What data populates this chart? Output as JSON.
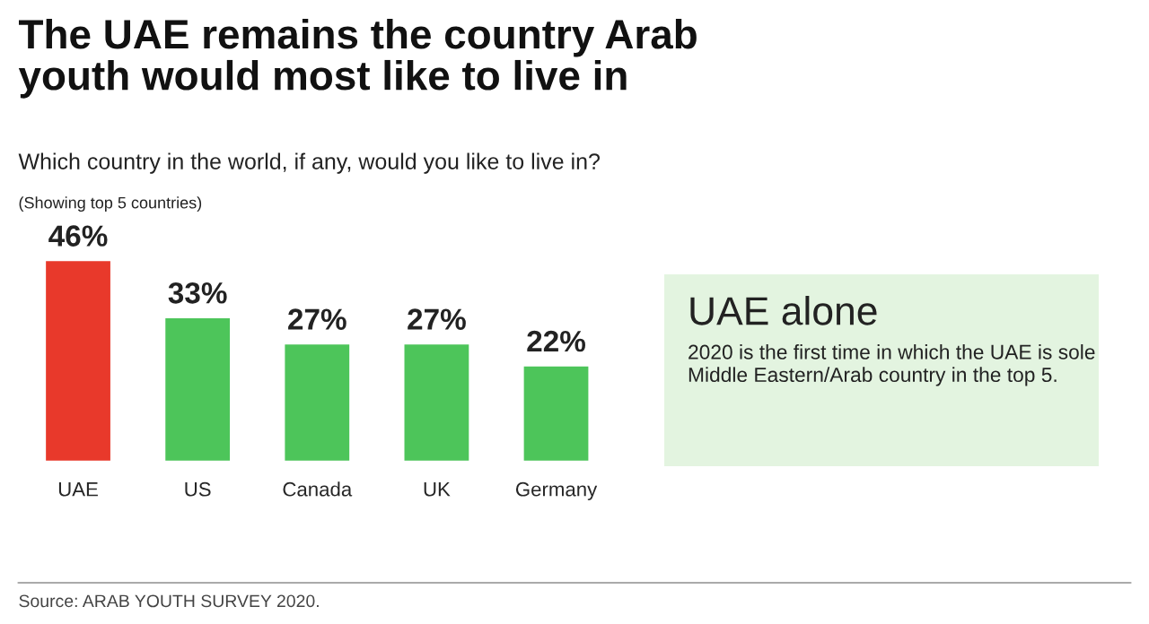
{
  "chart_data": {
    "type": "bar",
    "title": "The UAE remains the country Arab\nyouth would most like to live in",
    "subtitle": "Which country in the world, if any, would you like to live in?",
    "categories": [
      "UAE",
      "US",
      "Canada",
      "UK",
      "Germany"
    ],
    "values": [
      46,
      33,
      27,
      27,
      22
    ],
    "colors": [
      "#e8392b",
      "#4dc55a",
      "#4dc55a",
      "#4dc55a",
      "#4dc55a"
    ],
    "value_labels": [
      "46%",
      "33%",
      "27%",
      "27%",
      "22%"
    ],
    "grid": false,
    "legend": false,
    "annotations": [
      "(Showing top 5 countries)",
      "UAE alone",
      "2020 is the first time in which the UAE is sole Middle Eastern/Arab country in the top 5.",
      "Source: ARAB YOUTH SURVEY 2020."
    ]
  }
}
